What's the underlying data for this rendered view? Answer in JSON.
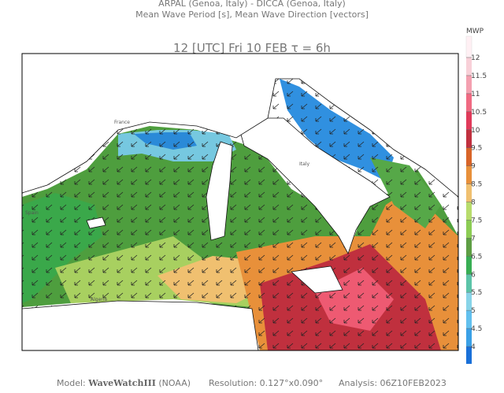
{
  "header": {
    "line1": "ARPAL (Genoa, Italy)  -  DICCA (Genoa, Italy)",
    "line2": "Mean Wave Period [s], Mean Wave Direction [vectors]"
  },
  "title": "12 [UTC] Fri 10 FEB  τ = 6h",
  "colorbar": {
    "label": "MWP",
    "ticks": [
      4,
      4.5,
      5,
      5.5,
      6,
      6.5,
      7,
      7.5,
      8,
      8.5,
      9,
      9.5,
      10,
      10.5,
      11,
      11.5,
      12
    ],
    "colors": [
      "#3aa0e6",
      "#62c0ee",
      "#88d4e8",
      "#5cc4a8",
      "#38ae54",
      "#5e9e44",
      "#8ccc54",
      "#b8dc6c",
      "#f0c070",
      "#e8903a",
      "#d86428",
      "#c0303e",
      "#e03a5a",
      "#f06a82",
      "#f4a0b0",
      "#f8d0d8"
    ]
  },
  "places": {
    "france": "France",
    "spain": "Spain",
    "algeria": "Algeria",
    "italy": "Italy"
  },
  "footer": {
    "model_label": "Model:",
    "model_name": "WaveWatchIII",
    "model_org": "(NOAA)",
    "resolution": "Resolution: 0.127°x0.090°",
    "analysis": "Analysis: 06Z10FEB2023"
  }
}
